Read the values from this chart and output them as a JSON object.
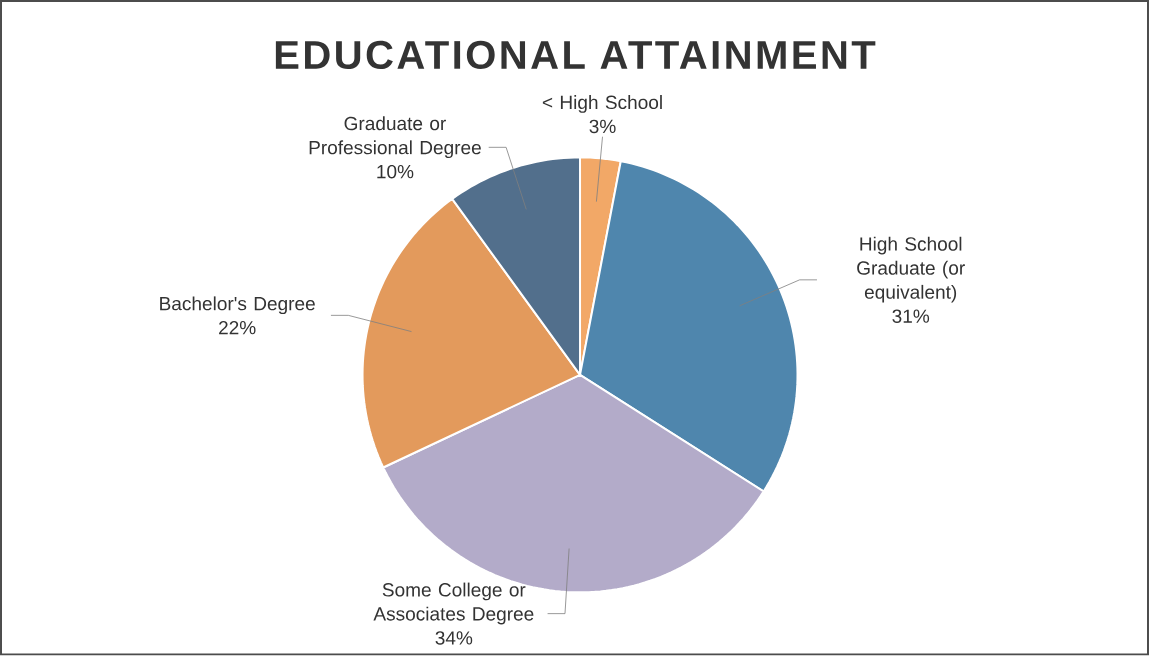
{
  "chart_data": {
    "type": "pie",
    "title": "EDUCATIONAL ATTAINMENT",
    "categories": [
      "< High School",
      "High School Graduate (or equivalent)",
      "Some College or Associates Degree",
      "Bachelor's Degree",
      "Graduate or Professional Degree"
    ],
    "values": [
      3,
      31,
      34,
      22,
      10
    ],
    "value_labels": [
      "3%",
      "31%",
      "34%",
      "22%",
      "10%"
    ],
    "colors": [
      "#f2a867",
      "#4f86ad",
      "#b3abc9",
      "#e39a5c",
      "#526f8c"
    ]
  }
}
